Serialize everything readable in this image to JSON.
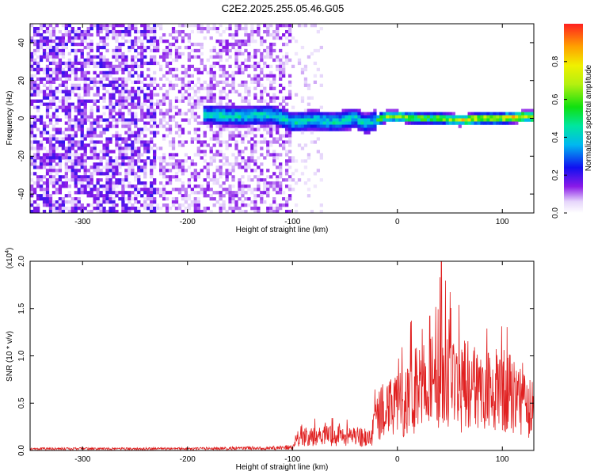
{
  "title": "C2E2.2025.255.05.46.G05",
  "chart_data": [
    {
      "type": "heatmap",
      "xlabel": "Height of straight line (km)",
      "ylabel": "Frequency (Hz)",
      "xlim": [
        -350,
        130
      ],
      "ylim": [
        -50,
        50
      ],
      "xticks": [
        -300,
        -200,
        -100,
        0,
        100
      ],
      "yticks": [
        -40,
        -20,
        0,
        20,
        40
      ],
      "colorbar": {
        "label": "Normalized spectral amplitude",
        "range": [
          0,
          1
        ],
        "ticks": [
          "0.0",
          "0.2",
          "0.4",
          "0.6",
          "0.8"
        ],
        "colormap": "rainbow (white-violet-blue-cyan-green-yellow-red)"
      },
      "ridge": {
        "description": "signal concentrated near 0 Hz for heights above about -180 km",
        "x": [
          -180,
          -150,
          -120,
          -100,
          -80,
          -60,
          -40,
          -30,
          -20,
          -10,
          0,
          20,
          40,
          60,
          80,
          100,
          120,
          130
        ],
        "y": [
          2,
          1,
          2,
          -2,
          -1,
          -2,
          0,
          -3,
          -1,
          1,
          1,
          0,
          0,
          -1,
          0,
          0,
          1,
          1
        ]
      }
    },
    {
      "type": "line",
      "xlabel": "Height of straight line (km)",
      "ylabel": "SNR (10 * v/v)",
      "multiplier": "(x10⁴)",
      "xlim": [
        -350,
        130
      ],
      "ylim": [
        0.0,
        2.0
      ],
      "xticks": [
        -300,
        -200,
        -100,
        0,
        100
      ],
      "yticks": [
        "0.0",
        "0.5",
        "1.0",
        "1.5",
        "2.0"
      ],
      "series_color": "#e02020",
      "envelope": {
        "x": [
          -350,
          -200,
          -100,
          -95,
          -75,
          -60,
          -40,
          -25,
          -20,
          -10,
          0,
          10,
          20,
          40,
          60,
          80,
          100,
          120,
          130
        ],
        "y_peak": [
          0.03,
          0.03,
          0.06,
          0.25,
          0.37,
          0.35,
          0.33,
          0.28,
          0.9,
          1.05,
          1.15,
          1.35,
          1.6,
          2.0,
          1.55,
          1.45,
          1.5,
          1.3,
          0.95
        ],
        "y_typical": [
          0.02,
          0.02,
          0.03,
          0.12,
          0.18,
          0.17,
          0.16,
          0.14,
          0.4,
          0.5,
          0.55,
          0.6,
          0.75,
          0.85,
          0.75,
          0.7,
          0.7,
          0.6,
          0.45
        ]
      }
    }
  ]
}
